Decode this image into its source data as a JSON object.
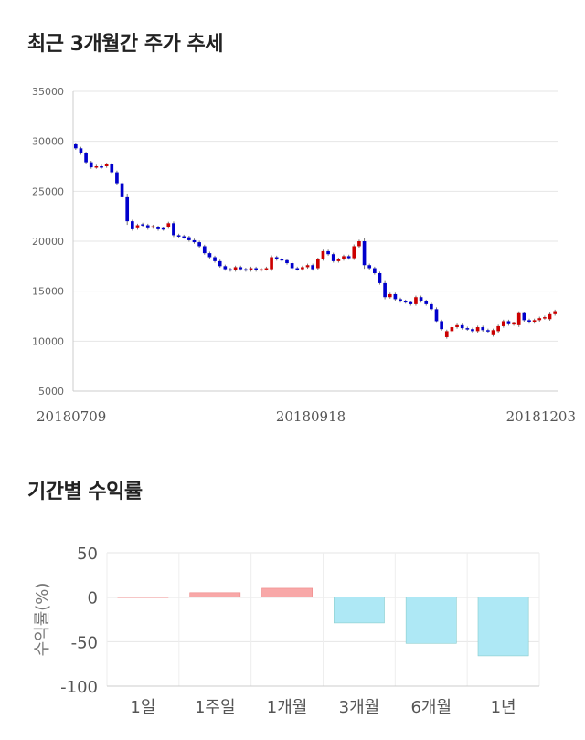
{
  "sections": {
    "price_title": "최근 3개월간 주가 추세",
    "returns_title": "기간별 수익률"
  },
  "chart_data": [
    {
      "type": "candlestick",
      "title": "최근 3개월간 주가 추세",
      "ylim": [
        5000,
        35000
      ],
      "yticks": [
        35000,
        30000,
        25000,
        20000,
        15000,
        10000,
        5000
      ],
      "xtick_labels": [
        "20180709",
        "20180918",
        "20181203"
      ],
      "grid": true,
      "up_color": "#cc0000",
      "down_color": "#0000cc",
      "candles": [
        [
          29700,
          29300
        ],
        [
          29300,
          28800
        ],
        [
          28800,
          27900
        ],
        [
          27900,
          27400
        ],
        [
          27400,
          27500
        ],
        [
          27500,
          27400
        ],
        [
          27500,
          27700
        ],
        [
          27700,
          26900
        ],
        [
          26900,
          25800
        ],
        [
          25800,
          24400
        ],
        [
          24400,
          22000
        ],
        [
          22000,
          21200
        ],
        [
          21300,
          21600
        ],
        [
          21700,
          21600
        ],
        [
          21600,
          21300
        ],
        [
          21400,
          21500
        ],
        [
          21400,
          21200
        ],
        [
          21300,
          21200
        ],
        [
          21400,
          21800
        ],
        [
          21800,
          20600
        ],
        [
          20600,
          20500
        ],
        [
          20500,
          20400
        ],
        [
          20400,
          20100
        ],
        [
          20100,
          19900
        ],
        [
          19900,
          19500
        ],
        [
          19500,
          18800
        ],
        [
          18800,
          18400
        ],
        [
          18400,
          18000
        ],
        [
          18000,
          17500
        ],
        [
          17500,
          17200
        ],
        [
          17200,
          17100
        ],
        [
          17100,
          17400
        ],
        [
          17400,
          17200
        ],
        [
          17200,
          17100
        ],
        [
          17100,
          17300
        ],
        [
          17300,
          17100
        ],
        [
          17100,
          17200
        ],
        [
          17200,
          17300
        ],
        [
          17200,
          18400
        ],
        [
          18400,
          18200
        ],
        [
          18200,
          18100
        ],
        [
          18100,
          17800
        ],
        [
          17800,
          17300
        ],
        [
          17300,
          17200
        ],
        [
          17200,
          17400
        ],
        [
          17400,
          17600
        ],
        [
          17600,
          17200
        ],
        [
          17300,
          18200
        ],
        [
          18200,
          19000
        ],
        [
          19000,
          18700
        ],
        [
          18700,
          18000
        ],
        [
          18000,
          18200
        ],
        [
          18200,
          18500
        ],
        [
          18500,
          18300
        ],
        [
          18300,
          19500
        ],
        [
          19500,
          20000
        ],
        [
          20000,
          17600
        ],
        [
          17600,
          17300
        ],
        [
          17300,
          16800
        ],
        [
          16800,
          15800
        ],
        [
          15800,
          14400
        ],
        [
          14400,
          14700
        ],
        [
          14700,
          14200
        ],
        [
          14200,
          14000
        ],
        [
          14000,
          13900
        ],
        [
          13900,
          13700
        ],
        [
          13700,
          14400
        ],
        [
          14400,
          14000
        ],
        [
          14000,
          13700
        ],
        [
          13700,
          13200
        ],
        [
          13200,
          12000
        ],
        [
          12000,
          11200
        ],
        [
          10400,
          11000
        ],
        [
          11000,
          11400
        ],
        [
          11400,
          11600
        ],
        [
          11600,
          11300
        ],
        [
          11300,
          11200
        ],
        [
          11200,
          11000
        ],
        [
          11000,
          11400
        ],
        [
          11400,
          11100
        ],
        [
          11100,
          11000
        ],
        [
          10600,
          11100
        ],
        [
          11000,
          11500
        ],
        [
          11500,
          12000
        ],
        [
          12000,
          11700
        ],
        [
          11700,
          11800
        ],
        [
          11600,
          12800
        ],
        [
          12800,
          12100
        ],
        [
          12100,
          11900
        ],
        [
          11900,
          12100
        ],
        [
          12100,
          12300
        ],
        [
          12300,
          12400
        ],
        [
          12200,
          12700
        ],
        [
          12700,
          13000
        ]
      ]
    },
    {
      "type": "bar",
      "title": "기간별 수익률",
      "categories": [
        "1일",
        "1주일",
        "1개월",
        "3개월",
        "6개월",
        "1년"
      ],
      "values": [
        0,
        5,
        10,
        -29,
        -52,
        -66
      ],
      "ylabel": "수익률(%)",
      "ylim": [
        -100,
        50
      ],
      "yticks": [
        50,
        0,
        -50,
        -100
      ],
      "positive_color": "#f8a8a8",
      "negative_color": "#aee8f5",
      "grid": true
    }
  ]
}
